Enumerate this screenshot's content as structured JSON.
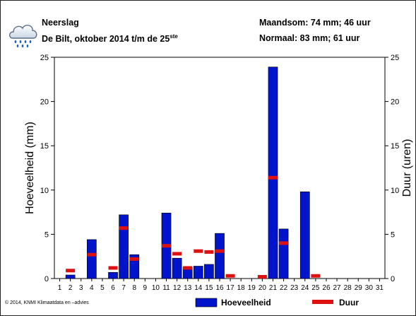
{
  "header": {
    "title": "Neerslag",
    "subtitle_main": "De Bilt, oktober 2014 t/m de 25",
    "subtitle_sup": "ste",
    "month_sum": "Maandsom: 74 mm; 46 uur",
    "normal": "Normaal: 83 mm; 61 uur"
  },
  "icon": "rain-cloud-icon",
  "footer": {
    "copyright": "© 2014, KNMI Klimaatdata en –advies"
  },
  "chart_data": {
    "type": "bar",
    "x": [
      1,
      2,
      3,
      4,
      5,
      6,
      7,
      8,
      9,
      10,
      11,
      12,
      13,
      14,
      15,
      16,
      17,
      18,
      19,
      20,
      21,
      22,
      23,
      24,
      25,
      26,
      27,
      28,
      29,
      30,
      31
    ],
    "xticks": [
      "1",
      "2",
      "3",
      "4",
      "5",
      "6",
      "7",
      "8",
      "9",
      "10",
      "11",
      "12",
      "13",
      "14",
      "15",
      "16",
      "17",
      "18",
      "19",
      "20",
      "21",
      "22",
      "23",
      "24",
      "25",
      "26",
      "27",
      "28",
      "29",
      "30",
      "31"
    ],
    "ylim": [
      0,
      25
    ],
    "yticks": [
      "0",
      "5",
      "10",
      "15",
      "20",
      "25"
    ],
    "y2lim": [
      0,
      25
    ],
    "y2ticks": [
      "0",
      "5",
      "10",
      "15",
      "20",
      "25"
    ],
    "ylabel": "Hoeveelheid (mm)",
    "y2label": "Duur (uren)",
    "grid": false,
    "legend_position": "bottom",
    "series": [
      {
        "name": "Hoeveelheid",
        "kind": "bar",
        "color": "#0014cc",
        "values": [
          0,
          0.4,
          0,
          4.4,
          0,
          0.7,
          7.2,
          2.7,
          0,
          0,
          7.4,
          2.3,
          1.3,
          1.4,
          1.6,
          5.1,
          0,
          0,
          0,
          0,
          23.9,
          5.6,
          0,
          9.8,
          0,
          null,
          null,
          null,
          null,
          null,
          null
        ]
      },
      {
        "name": "Duur",
        "kind": "marker",
        "color": "#dd1111",
        "values": [
          0,
          0.9,
          0,
          2.7,
          0,
          1.2,
          5.7,
          2.2,
          0,
          0,
          3.7,
          2.8,
          1.2,
          3.1,
          3.0,
          3.1,
          0.3,
          0,
          0,
          0.2,
          11.4,
          4.0,
          0,
          0,
          0.3,
          null,
          null,
          null,
          null,
          null,
          null
        ]
      }
    ]
  }
}
